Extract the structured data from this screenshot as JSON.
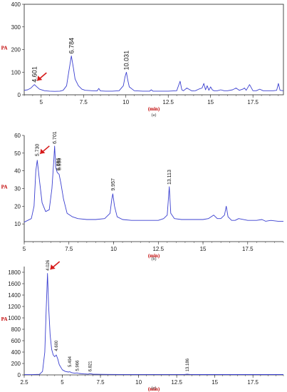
{
  "colors": {
    "trace": "#3a3fd0",
    "axis": "#222222",
    "arrow": "#d61a1a",
    "unit": "#c00000"
  },
  "chart_data": [
    {
      "type": "line",
      "caption": "(a)",
      "xlabel": "(min)",
      "ylabel": "PA",
      "xlim": [
        4,
        19.3
      ],
      "ylim": [
        0,
        400
      ],
      "xticks": [
        5,
        7.5,
        10,
        12.5,
        15,
        17.5
      ],
      "xtick_labels": [
        "5",
        "7.5",
        "10",
        "12.5",
        "15",
        "17.5"
      ],
      "yticks": [
        0,
        100,
        200,
        300,
        400
      ],
      "ytick_labels": [
        "0",
        "100",
        "200",
        "300",
        "400"
      ],
      "peak_labels": [
        {
          "x": 4.601,
          "y": 45,
          "text": "4.601",
          "size": 9
        },
        {
          "x": 6.784,
          "y": 172,
          "text": "6.784",
          "size": 9
        },
        {
          "x": 10.031,
          "y": 100,
          "text": "10.031",
          "size": 9
        }
      ],
      "arrow_at": [
        4.601,
        50
      ],
      "x": [
        4.0,
        4.2,
        4.4,
        4.5,
        4.601,
        4.75,
        4.9,
        5.2,
        5.5,
        5.8,
        6.1,
        6.3,
        6.5,
        6.65,
        6.784,
        6.9,
        7.0,
        7.2,
        7.4,
        7.6,
        8.0,
        8.3,
        8.4,
        8.5,
        8.8,
        9.2,
        9.6,
        9.85,
        9.95,
        10.031,
        10.1,
        10.2,
        10.5,
        11.0,
        11.4,
        11.5,
        11.6,
        12.0,
        12.5,
        13.0,
        13.2,
        13.3,
        13.4,
        13.6,
        13.9,
        14.1,
        14.3,
        14.5,
        14.6,
        14.7,
        14.8,
        14.9,
        15.0,
        15.1,
        15.2,
        15.4,
        15.6,
        15.8,
        16.0,
        16.3,
        16.5,
        16.7,
        16.9,
        17.0,
        17.1,
        17.3,
        17.5,
        17.7,
        17.9,
        18.1,
        18.4,
        18.7,
        18.9,
        19.0,
        19.1,
        19.3
      ],
      "y": [
        20,
        22,
        30,
        38,
        45,
        35,
        25,
        18,
        16,
        15,
        16,
        20,
        40,
        110,
        172,
        120,
        70,
        40,
        25,
        20,
        18,
        17,
        28,
        17,
        16,
        16,
        18,
        40,
        80,
        100,
        70,
        35,
        18,
        16,
        16,
        22,
        16,
        16,
        16,
        18,
        60,
        22,
        18,
        30,
        17,
        18,
        25,
        30,
        50,
        22,
        40,
        20,
        35,
        22,
        18,
        18,
        22,
        18,
        18,
        22,
        30,
        20,
        25,
        30,
        20,
        45,
        18,
        18,
        25,
        18,
        18,
        18,
        20,
        50,
        20,
        18
      ]
    },
    {
      "type": "line",
      "caption": "(b)",
      "xlabel": "(min)",
      "ylabel": "PA",
      "xlim": [
        5,
        19.5
      ],
      "ylim": [
        0,
        60
      ],
      "xticks": [
        5,
        7.5,
        10,
        12.5,
        15,
        17.5
      ],
      "xtick_labels": [
        "5",
        "7.5",
        "10",
        "12.5",
        "15",
        "17.5"
      ],
      "yticks": [
        10,
        20,
        30,
        40,
        50,
        60
      ],
      "ytick_labels": [
        "10",
        "20",
        "30",
        "40",
        "50",
        "60"
      ],
      "peak_labels": [
        {
          "x": 5.73,
          "y": 47,
          "text": "5.730",
          "size": 7
        },
        {
          "x": 6.701,
          "y": 54,
          "text": "6.701",
          "size": 7
        },
        {
          "x": 6.9,
          "y": 39,
          "text": "6.896",
          "size": 7
        },
        {
          "x": 6.96,
          "y": 39,
          "text": "6.958",
          "size": 7
        },
        {
          "x": 9.957,
          "y": 27.5,
          "text": "9.957",
          "size": 7
        },
        {
          "x": 13.113,
          "y": 31,
          "text": "13.113",
          "size": 7
        }
      ],
      "arrow_at": [
        5.73,
        48
      ],
      "x": [
        5.0,
        5.2,
        5.4,
        5.55,
        5.65,
        5.73,
        5.85,
        6.0,
        6.2,
        6.4,
        6.55,
        6.65,
        6.701,
        6.76,
        6.85,
        6.95,
        7.05,
        7.2,
        7.4,
        7.7,
        8.0,
        8.5,
        9.0,
        9.5,
        9.8,
        9.9,
        9.957,
        10.05,
        10.2,
        10.5,
        11.0,
        11.5,
        12.0,
        12.5,
        12.8,
        13.0,
        13.113,
        13.2,
        13.4,
        13.8,
        14.2,
        14.6,
        15.0,
        15.3,
        15.6,
        15.8,
        16.0,
        16.2,
        16.3,
        16.4,
        16.6,
        16.8,
        17.0,
        17.5,
        18.0,
        18.3,
        18.5,
        18.8,
        19.2,
        19.5
      ],
      "y": [
        11,
        12,
        13,
        20,
        40,
        46,
        35,
        22,
        17,
        18,
        30,
        45,
        54,
        42,
        39,
        38,
        33,
        24,
        16,
        14,
        13,
        12.5,
        12.5,
        13,
        16,
        24,
        27,
        20,
        14,
        12.5,
        12,
        12,
        12,
        12,
        13,
        15,
        31,
        16,
        13,
        12.5,
        12.5,
        12.5,
        12.5,
        13,
        15,
        13,
        13,
        15,
        20,
        14,
        12,
        12,
        13,
        12,
        12,
        12.5,
        11.5,
        12,
        11.5,
        11.5
      ]
    },
    {
      "type": "line",
      "caption": "(c)",
      "xlabel": "(min)",
      "ylabel": "PA",
      "xlim": [
        2.5,
        19.5
      ],
      "ylim": [
        0,
        1900
      ],
      "xticks": [
        2.5,
        5,
        7.5,
        10,
        12.5,
        15,
        17.5
      ],
      "xtick_labels": [
        "2.5",
        "5",
        "7.5",
        "10",
        "12.5",
        "15",
        "17.5"
      ],
      "yticks": [
        0,
        200,
        400,
        600,
        800,
        1000,
        1200,
        1400,
        1600,
        1800
      ],
      "ytick_labels": [
        "0",
        "200",
        "400",
        "600",
        "800",
        "1000",
        "1200",
        "1400",
        "1600",
        "1800"
      ],
      "peak_labels": [
        {
          "x": 4.026,
          "y": 1790,
          "text": "4.026",
          "size": 6
        },
        {
          "x": 4.6,
          "y": 380,
          "text": "4.600",
          "size": 6
        },
        {
          "x": 5.494,
          "y": 100,
          "text": "5.494",
          "size": 6
        },
        {
          "x": 5.966,
          "y": 30,
          "text": "5.966",
          "size": 6
        },
        {
          "x": 6.821,
          "y": 20,
          "text": "6.821",
          "size": 6
        },
        {
          "x": 13.186,
          "y": 20,
          "text": "13.186",
          "size": 6
        }
      ],
      "arrow_at": [
        4.026,
        1800
      ],
      "x": [
        2.5,
        3.0,
        3.5,
        3.7,
        3.85,
        3.95,
        4.026,
        4.1,
        4.2,
        4.3,
        4.4,
        4.5,
        4.6,
        4.7,
        4.8,
        5.0,
        5.2,
        5.4,
        5.494,
        5.6,
        5.8,
        5.966,
        6.1,
        6.4,
        6.7,
        6.821,
        7.0,
        7.5,
        8.0,
        9.0,
        10.0,
        11.0,
        12.0,
        13.0,
        13.186,
        13.4,
        14.0,
        15.0,
        16.0,
        17.0,
        18.0,
        19.0,
        19.5
      ],
      "y": [
        5,
        5,
        10,
        60,
        400,
        1200,
        1780,
        1200,
        700,
        450,
        350,
        320,
        350,
        280,
        180,
        90,
        60,
        50,
        55,
        40,
        30,
        35,
        25,
        18,
        14,
        22,
        12,
        10,
        9,
        8,
        8,
        7,
        7,
        8,
        12,
        7,
        6,
        6,
        6,
        6,
        6,
        6,
        6
      ]
    }
  ]
}
